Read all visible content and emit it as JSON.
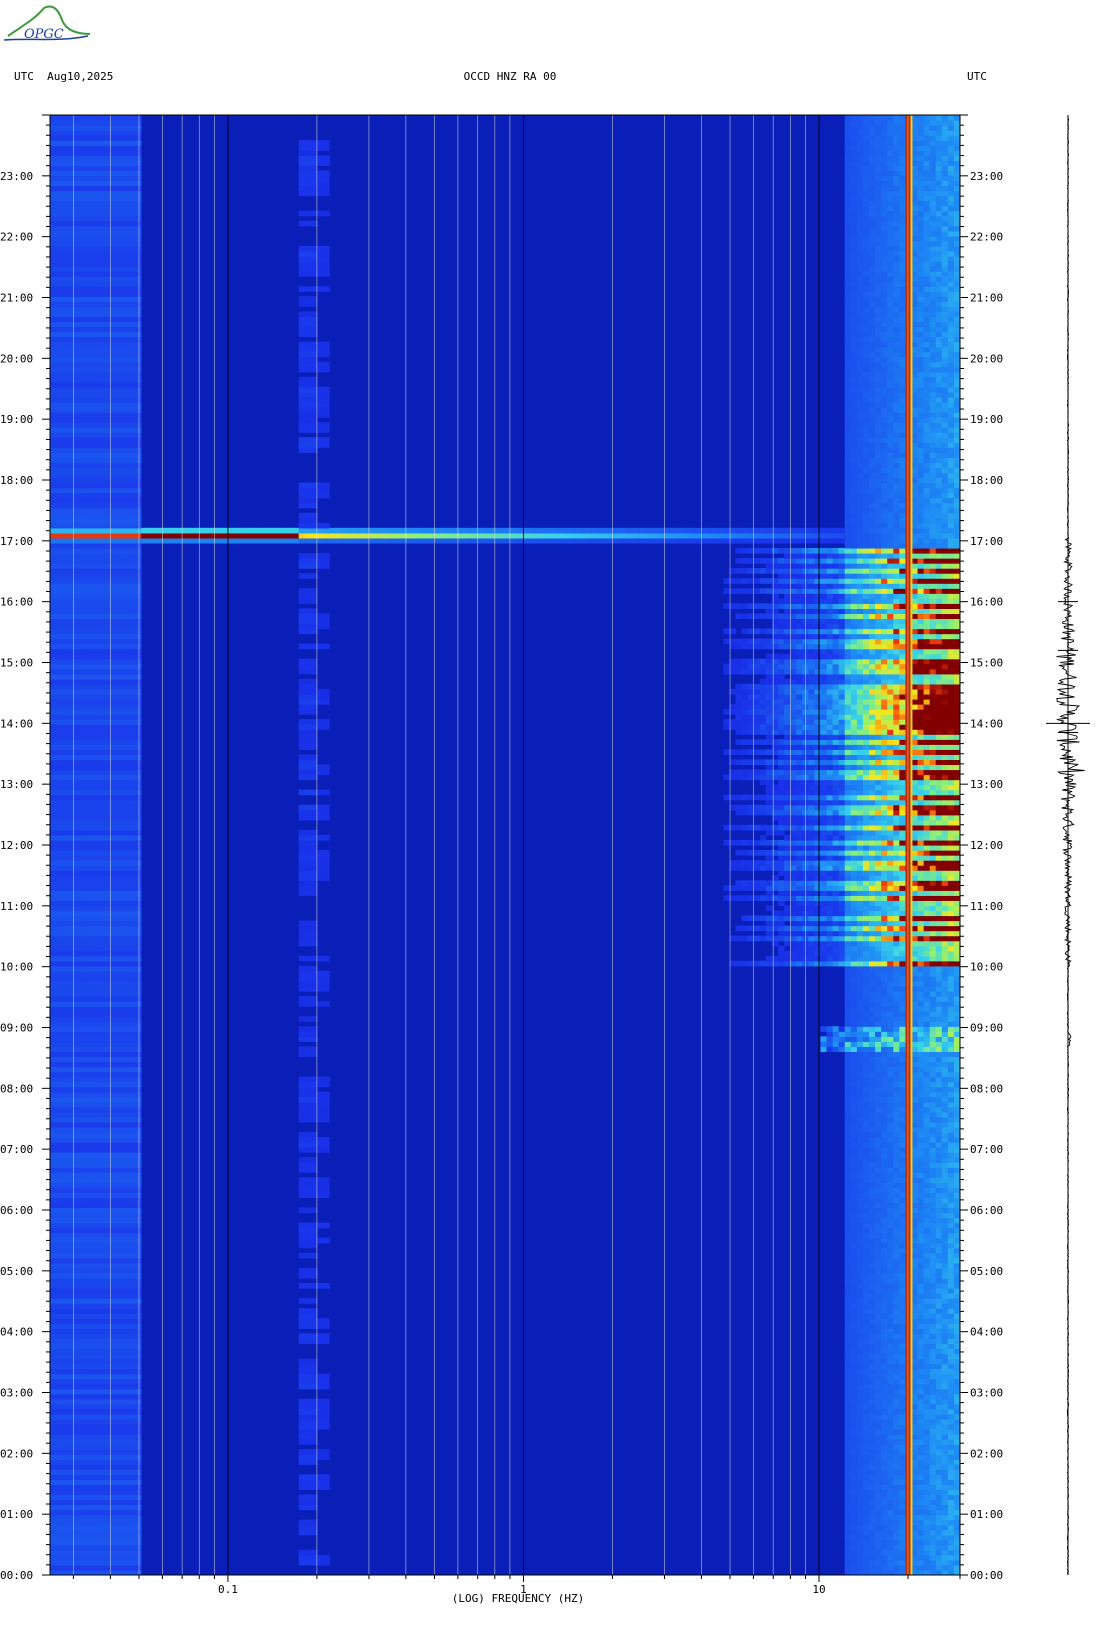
{
  "header": {
    "left": "UTC  Aug10,2025",
    "center": "OCCD HNZ RA 00",
    "right": "UTC"
  },
  "logo_text": "OPGC",
  "colors": {
    "background": "#1a2fe0",
    "low": "#0a1fb8",
    "mid": "#36c8e8",
    "high": "#f4e020",
    "peak": "#8b0000",
    "grid_minor": "#d8d8d8",
    "grid_major": "#000000"
  },
  "chart_data": {
    "type": "heatmap",
    "title": "OCCD HNZ RA 00",
    "xlabel": "(LOG) FREQUENCY (HZ)",
    "ylabel": "UTC",
    "x_scale": "log",
    "xlim": [
      0.025,
      30
    ],
    "ylim": [
      0,
      24
    ],
    "x_tick_labels": [
      {
        "value": 0.1,
        "label": "0.1"
      },
      {
        "value": 1,
        "label": "1"
      },
      {
        "value": 10,
        "label": "10"
      }
    ],
    "y_tick_labels": [
      {
        "value": 0,
        "label": "00:00"
      },
      {
        "value": 1,
        "label": "01:00"
      },
      {
        "value": 2,
        "label": "02:00"
      },
      {
        "value": 3,
        "label": "03:00"
      },
      {
        "value": 4,
        "label": "04:00"
      },
      {
        "value": 5,
        "label": "05:00"
      },
      {
        "value": 6,
        "label": "06:00"
      },
      {
        "value": 7,
        "label": "07:00"
      },
      {
        "value": 8,
        "label": "08:00"
      },
      {
        "value": 9,
        "label": "09:00"
      },
      {
        "value": 10,
        "label": "10:00"
      },
      {
        "value": 11,
        "label": "11:00"
      },
      {
        "value": 12,
        "label": "12:00"
      },
      {
        "value": 13,
        "label": "13:00"
      },
      {
        "value": 14,
        "label": "14:00"
      },
      {
        "value": 15,
        "label": "15:00"
      },
      {
        "value": 16,
        "label": "16:00"
      },
      {
        "value": 17,
        "label": "17:00"
      },
      {
        "value": 18,
        "label": "18:00"
      },
      {
        "value": 19,
        "label": "19:00"
      },
      {
        "value": 20,
        "label": "20:00"
      },
      {
        "value": 21,
        "label": "21:00"
      },
      {
        "value": 22,
        "label": "22:00"
      },
      {
        "value": 23,
        "label": "23:00"
      }
    ],
    "grid": true,
    "features": [
      {
        "kind": "teleseismic_event",
        "time": 17.1,
        "freq_range": [
          0.025,
          25
        ],
        "peak_freq_range": [
          0.05,
          0.17
        ]
      },
      {
        "kind": "persistent_line",
        "freq": 20
      },
      {
        "kind": "cultural_noise",
        "time_range": [
          10,
          16.9
        ],
        "freq_range": [
          3,
          30
        ]
      }
    ],
    "trace": {
      "active_time_range": [
        10,
        17.05
      ],
      "peak_time": 14
    }
  }
}
